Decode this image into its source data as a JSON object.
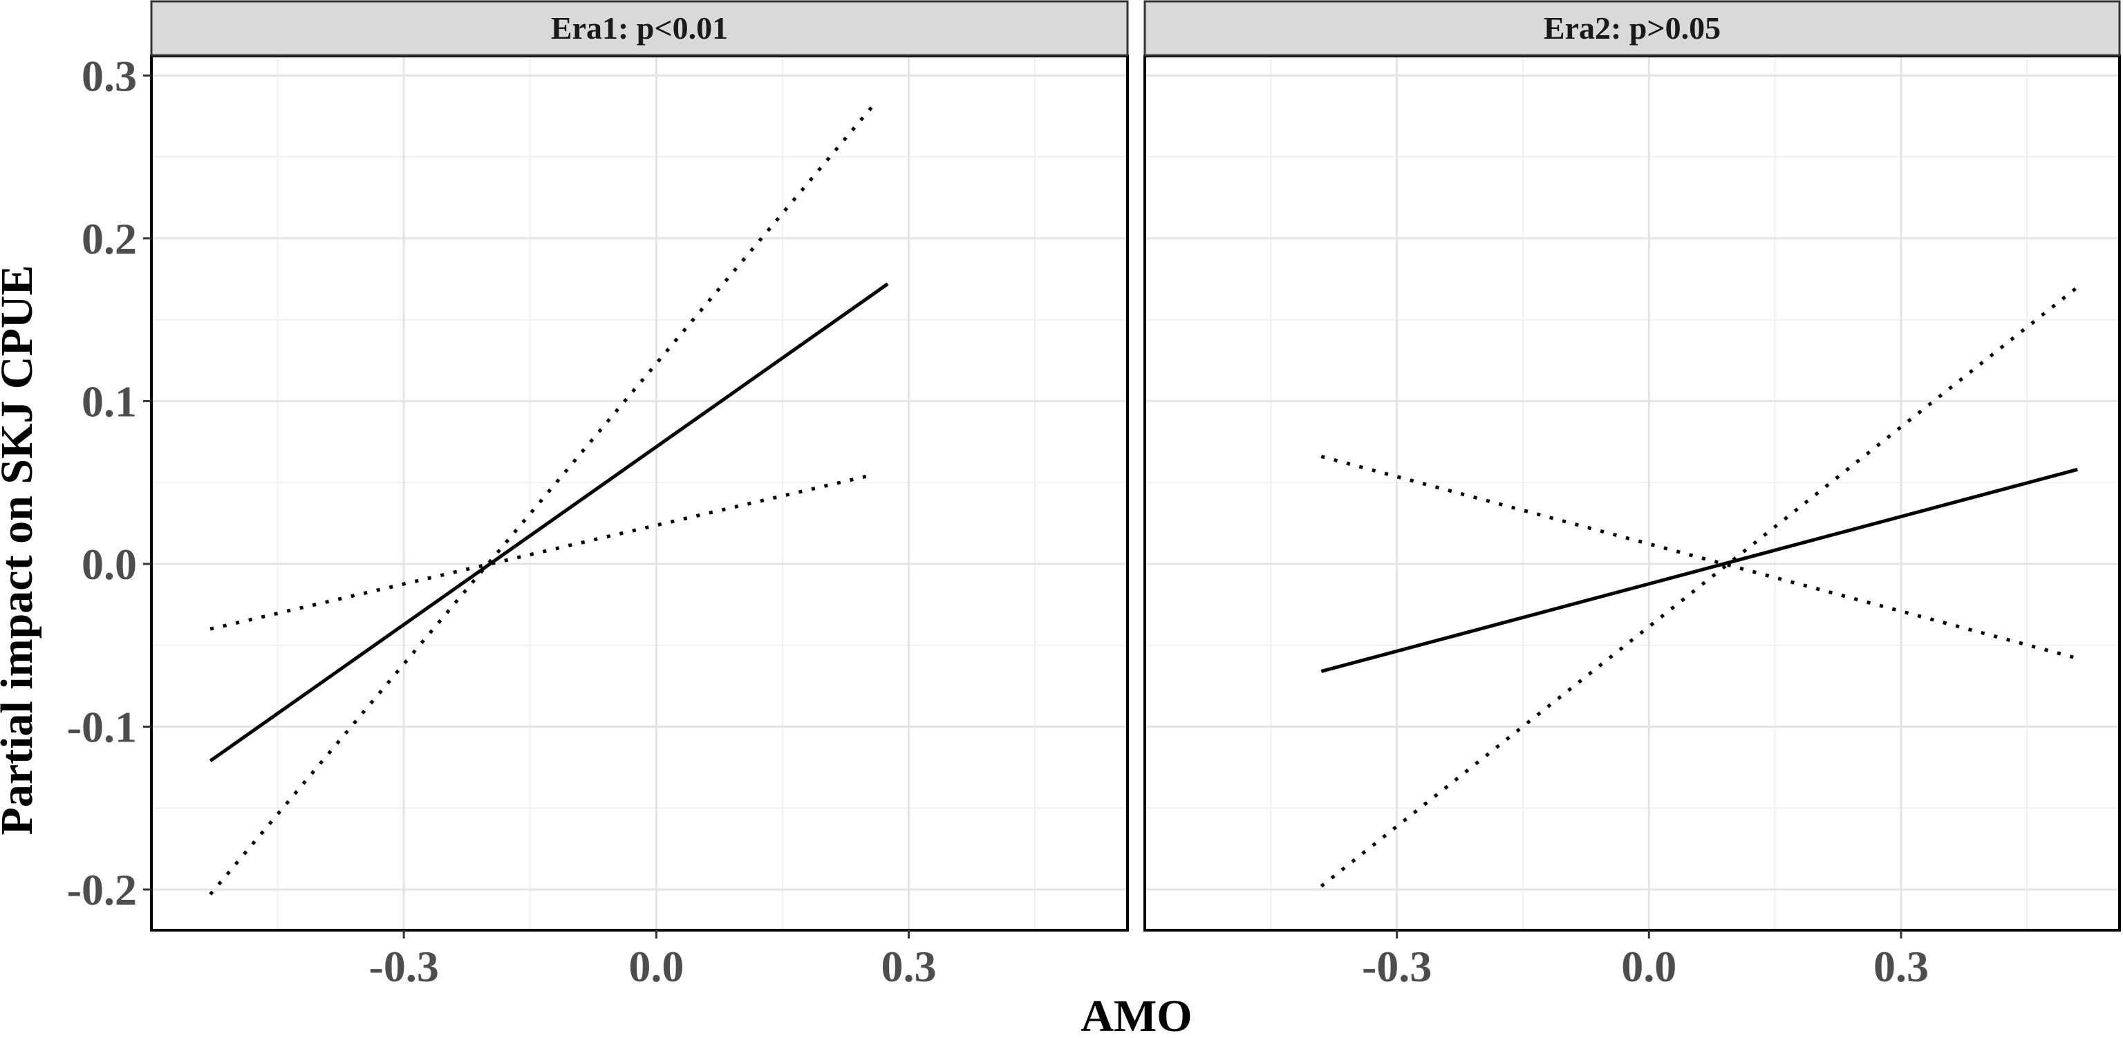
{
  "chart_data": {
    "type": "line",
    "xlabel": "AMO",
    "ylabel": "Partial impact on SKJ CPUE",
    "x_ticks": [
      "-0.3",
      "0.0",
      "0.3"
    ],
    "y_ticks": [
      "-0.2",
      "-0.1",
      "0.0",
      "0.1",
      "0.2",
      "0.3"
    ],
    "xlim": [
      -0.6,
      0.56
    ],
    "ylim": [
      -0.225,
      0.312
    ],
    "grid": true,
    "legend": "none",
    "panels": [
      {
        "title": "Era1: p<0.01",
        "series": [
          {
            "style": "solid",
            "x": [
              -0.53,
              0.275
            ],
            "y": [
              -0.121,
              0.172
            ]
          },
          {
            "style": "dotted",
            "x": [
              -0.53,
              0.26
            ],
            "y": [
              -0.203,
              0.283
            ]
          },
          {
            "style": "dotted",
            "x": [
              -0.53,
              0.26
            ],
            "y": [
              -0.04,
              0.055
            ]
          }
        ]
      },
      {
        "title": "Era2: p>0.05",
        "series": [
          {
            "style": "solid",
            "x": [
              -0.39,
              0.51
            ],
            "y": [
              -0.066,
              0.058
            ]
          },
          {
            "style": "dotted",
            "x": [
              -0.39,
              0.51
            ],
            "y": [
              -0.198,
              0.17
            ]
          },
          {
            "style": "dotted",
            "x": [
              -0.39,
              0.51
            ],
            "y": [
              0.066,
              -0.058
            ]
          }
        ]
      }
    ]
  }
}
